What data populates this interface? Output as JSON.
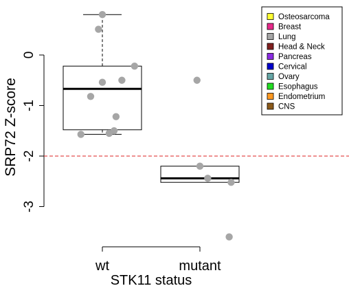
{
  "chart_data": {
    "type": "box",
    "xlabel": "STK11 status",
    "ylabel": "SRP72 Z-score",
    "categories": [
      "wt",
      "mutant"
    ],
    "ylim": [
      -3.3,
      0.85
    ],
    "yticks": [
      -3,
      -2,
      -1,
      0
    ],
    "reference_line": {
      "y": -2,
      "color": "#dd2222",
      "style": "dashed"
    },
    "groups": [
      {
        "name": "wt",
        "box": {
          "min": -1.57,
          "q1": -1.48,
          "median": -0.67,
          "q3": -0.22,
          "max": 0.8
        },
        "points": [
          {
            "x": 0.78,
            "y": -1.57
          },
          {
            "x": 1.07,
            "y": -1.55
          },
          {
            "x": 1.12,
            "y": -1.5
          },
          {
            "x": 1.14,
            "y": -1.22
          },
          {
            "x": 0.88,
            "y": -0.82
          },
          {
            "x": 1.0,
            "y": -0.54
          },
          {
            "x": 1.2,
            "y": -0.5
          },
          {
            "x": 1.33,
            "y": -0.22
          },
          {
            "x": 0.96,
            "y": 0.51
          },
          {
            "x": 1.0,
            "y": 0.8
          }
        ]
      },
      {
        "name": "mutant",
        "box": {
          "min": -2.52,
          "q1": -2.52,
          "median": -2.44,
          "q3": -2.2,
          "max": -2.2
        },
        "points": [
          {
            "x": 1.97,
            "y": -0.5
          },
          {
            "x": 2.0,
            "y": -2.2
          },
          {
            "x": 2.08,
            "y": -2.44
          },
          {
            "x": 2.32,
            "y": -2.52
          },
          {
            "x": 2.3,
            "y": -3.6
          }
        ]
      }
    ],
    "point_color": "#a6a6a6",
    "legend": {
      "position": "top-right",
      "entries": [
        {
          "label": "Osteosarcoma",
          "color": "#ffff33"
        },
        {
          "label": "Breast",
          "color": "#e7298a"
        },
        {
          "label": "Lung",
          "color": "#a6a6a6"
        },
        {
          "label": "Head & Neck",
          "color": "#7f1f1f"
        },
        {
          "label": "Pancreas",
          "color": "#8a2be2"
        },
        {
          "label": "Cervical",
          "color": "#0000cd"
        },
        {
          "label": "Ovary",
          "color": "#66a6a6"
        },
        {
          "label": "Esophagus",
          "color": "#22dd22"
        },
        {
          "label": "Endometrium",
          "color": "#ff9922"
        },
        {
          "label": "CNS",
          "color": "#8b5a1a"
        }
      ]
    }
  }
}
